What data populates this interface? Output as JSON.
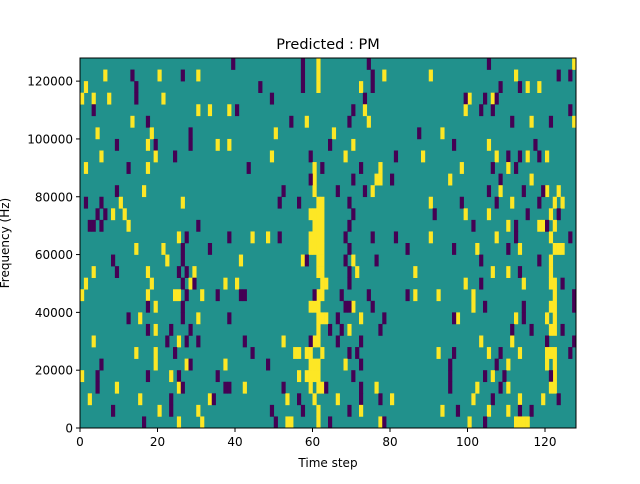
{
  "chart_data": {
    "type": "heatmap",
    "title": "Predicted : PM",
    "xlabel": "Time step",
    "ylabel": "Frequency (Hz)",
    "xlim": [
      0,
      128
    ],
    "ylim": [
      0,
      128000
    ],
    "xticks": [
      0,
      20,
      40,
      60,
      80,
      100,
      120
    ],
    "yticks": [
      0,
      20000,
      40000,
      60000,
      80000,
      100000,
      120000
    ],
    "n_cols": 128,
    "n_rows": 32,
    "colors": {
      "low": "#440154",
      "mid": "#21918c",
      "high": "#fde725"
    },
    "values_legend": {
      "low": -1,
      "mid": 0,
      "high": 1
    },
    "rows_top_to_bottom": [
      {
        "y": [
          61,
          127
        ],
        "p": [
          39,
          57,
          74,
          105
        ]
      },
      {
        "y": [
          6,
          20,
          30,
          61,
          78,
          90,
          112
        ],
        "p": [
          13,
          26,
          57,
          75,
          123,
          126
        ]
      },
      {
        "y": [
          1,
          61,
          72,
          115,
          118
        ],
        "p": [
          14,
          46,
          57,
          75,
          108,
          113
        ]
      },
      {
        "y": [
          0,
          3,
          7,
          21,
          100,
          106
        ],
        "p": [
          14,
          49,
          73,
          99,
          104,
          107
        ]
      },
      {
        "y": [
          30,
          33,
          38,
          73,
          99
        ],
        "p": [
          3,
          40,
          70,
          103,
          106,
          126
        ]
      },
      {
        "y": [
          13,
          58,
          74,
          116,
          127
        ],
        "p": [
          17,
          54,
          69,
          111,
          121
        ]
      },
      {
        "y": [
          4,
          18,
          50,
          65,
          93
        ],
        "p": [
          28,
          87
        ]
      },
      {
        "y": [
          17,
          35,
          38,
          70,
          105
        ],
        "p": [
          9,
          19,
          28,
          64,
          96,
          117
        ]
      },
      {
        "y": [
          5,
          19,
          49,
          68,
          88,
          107,
          115,
          120
        ],
        "p": [
          24,
          59,
          81,
          110,
          113,
          118
        ]
      },
      {
        "y": [
          1,
          17,
          60,
          77,
          98,
          110
        ],
        "p": [
          12,
          43,
          62,
          72,
          106,
          112
        ]
      },
      {
        "y": [
          60,
          76,
          77,
          95,
          116
        ],
        "p": [
          59,
          70,
          80,
          108
        ]
      },
      {
        "y": [
          16,
          60,
          75,
          108,
          120,
          123
        ],
        "p": [
          9,
          52,
          66,
          73,
          105,
          114,
          119
        ]
      },
      {
        "y": [
          10,
          26,
          61,
          62,
          90,
          111,
          122,
          124
        ],
        "p": [
          1,
          5,
          51,
          56,
          69,
          98,
          107,
          118
        ]
      },
      {
        "y": [
          8,
          11,
          59,
          60,
          61,
          62,
          99,
          105,
          121
        ],
        "p": [
          4,
          6,
          70,
          91,
          115,
          123
        ]
      },
      {
        "y": [
          12,
          60,
          61,
          62,
          110,
          118,
          119,
          122
        ],
        "p": [
          2,
          3,
          5,
          30,
          69,
          101,
          112,
          120
        ]
      },
      {
        "y": [
          25,
          44,
          48,
          59,
          60,
          61,
          62,
          90,
          107,
          121
        ],
        "p": [
          27,
          38,
          51,
          68,
          75,
          81,
          112,
          126
        ]
      },
      {
        "y": [
          14,
          21,
          59,
          60,
          61,
          62,
          102,
          113,
          122,
          123,
          124
        ],
        "p": [
          26,
          33,
          69,
          84,
          96,
          110
        ]
      },
      {
        "y": [
          22,
          41,
          57,
          61,
          62,
          70,
          121
        ],
        "p": [
          8,
          26,
          58,
          68,
          76,
          103,
          118
        ]
      },
      {
        "y": [
          3,
          17,
          29,
          61,
          62,
          71,
          86,
          106,
          110,
          121
        ],
        "p": [
          9,
          25,
          27,
          69,
          113
        ]
      },
      {
        "y": [
          1,
          18,
          28,
          37,
          40,
          62,
          63,
          99,
          114,
          121,
          122
        ],
        "p": [
          26,
          29,
          69,
          103,
          124
        ]
      },
      {
        "y": [
          0,
          17,
          24,
          25,
          31,
          61,
          62,
          86,
          92,
          101,
          122
        ],
        "p": [
          27,
          35,
          41,
          42,
          60,
          67,
          74,
          84,
          127
        ]
      },
      {
        "y": [
          19,
          59,
          60,
          61,
          70,
          101,
          121,
          122
        ],
        "p": [
          17,
          26,
          68,
          69,
          75,
          104,
          114,
          127
        ]
      },
      {
        "y": [
          15,
          30,
          61,
          62,
          63,
          72,
          97,
          112,
          120,
          122
        ],
        "p": [
          12,
          26,
          38,
          66,
          78,
          96,
          114
        ]
      },
      {
        "y": [
          19,
          61,
          69,
          121,
          122
        ],
        "p": [
          17,
          23,
          28,
          64,
          67,
          77,
          111,
          116,
          124
        ]
      },
      {
        "y": [
          3,
          25,
          52,
          60,
          61,
          103,
          111
        ],
        "p": [
          22,
          27,
          30,
          42,
          59,
          66,
          72,
          120,
          127
        ]
      },
      {
        "y": [
          14,
          19,
          55,
          56,
          58,
          59,
          62,
          92,
          105,
          113,
          120,
          121,
          122
        ],
        "p": [
          24,
          44,
          69,
          71,
          96,
          108,
          126
        ]
      },
      {
        "y": [
          19,
          27,
          37,
          59,
          60,
          61,
          68,
          110,
          120,
          122
        ],
        "p": [
          5,
          28,
          48,
          72,
          95,
          107
        ]
      },
      {
        "y": [
          0,
          23,
          56,
          58,
          59,
          60,
          61,
          106,
          122
        ],
        "p": [
          4,
          17,
          25,
          35,
          70,
          95,
          104,
          109,
          121
        ]
      },
      {
        "y": [
          9,
          25,
          42,
          59,
          61,
          62,
          76,
          102,
          110,
          121,
          122
        ],
        "p": [
          4,
          26,
          37,
          38,
          52,
          63,
          72,
          95,
          108
        ]
      },
      {
        "y": [
          2,
          15,
          33,
          53,
          60,
          66,
          80,
          101,
          113,
          119
        ],
        "p": [
          23,
          34,
          56,
          72,
          77,
          106,
          123
        ]
      },
      {
        "y": [
          20,
          30,
          61,
          72,
          93,
          105,
          110
        ],
        "p": [
          8,
          23,
          49,
          57,
          69,
          97,
          113,
          116
        ]
      },
      {
        "y": [
          25,
          31,
          53,
          54,
          61,
          77,
          100,
          112,
          113,
          114,
          115
        ],
        "p": [
          16,
          50,
          64,
          78,
          104
        ]
      }
    ]
  }
}
